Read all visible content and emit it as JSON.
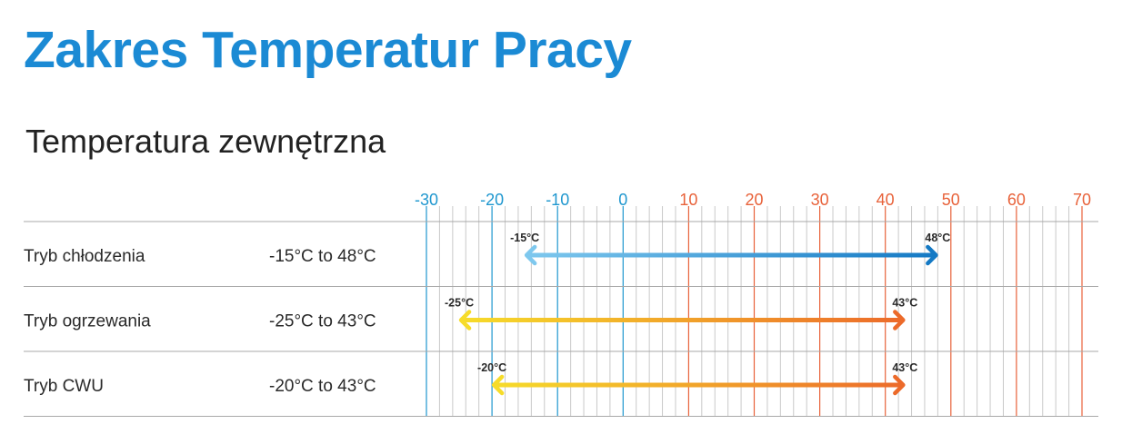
{
  "title": "Zakres Temperatur Pracy",
  "subtitle": "Temperatura zewnętrzna",
  "colors": {
    "title": "#1b8ad4",
    "cold_tick": "#1f97cf",
    "warm_tick": "#e8623a",
    "minor_grid": "#c9c9c9",
    "cooling_start": "#7ec8ee",
    "cooling_end": "#1479c4",
    "heating_start": "#f6dc2a",
    "heating_end": "#ec6a2a"
  },
  "chart_data": {
    "type": "range",
    "x_ticks": [
      "-30",
      "-20",
      "-10",
      "0",
      "10",
      "20",
      "30",
      "40",
      "50",
      "60",
      "70"
    ],
    "xlim": [
      -30,
      70
    ],
    "minor_step": 2,
    "rows": [
      {
        "label": "Tryb chłodzenia",
        "range_text": "-15°C to 48°C",
        "min": -15,
        "max": 48,
        "min_label": "-15°C",
        "max_label": "48°C",
        "gradient": "cooling"
      },
      {
        "label": "Tryb ogrzewania",
        "range_text": "-25°C to 43°C",
        "min": -25,
        "max": 43,
        "min_label": "-25°C",
        "max_label": "43°C",
        "gradient": "heating"
      },
      {
        "label": "Tryb CWU",
        "range_text": "-20°C to 43°C",
        "min": -20,
        "max": 43,
        "min_label": "-20°C",
        "max_label": "43°C",
        "gradient": "heating"
      }
    ]
  }
}
